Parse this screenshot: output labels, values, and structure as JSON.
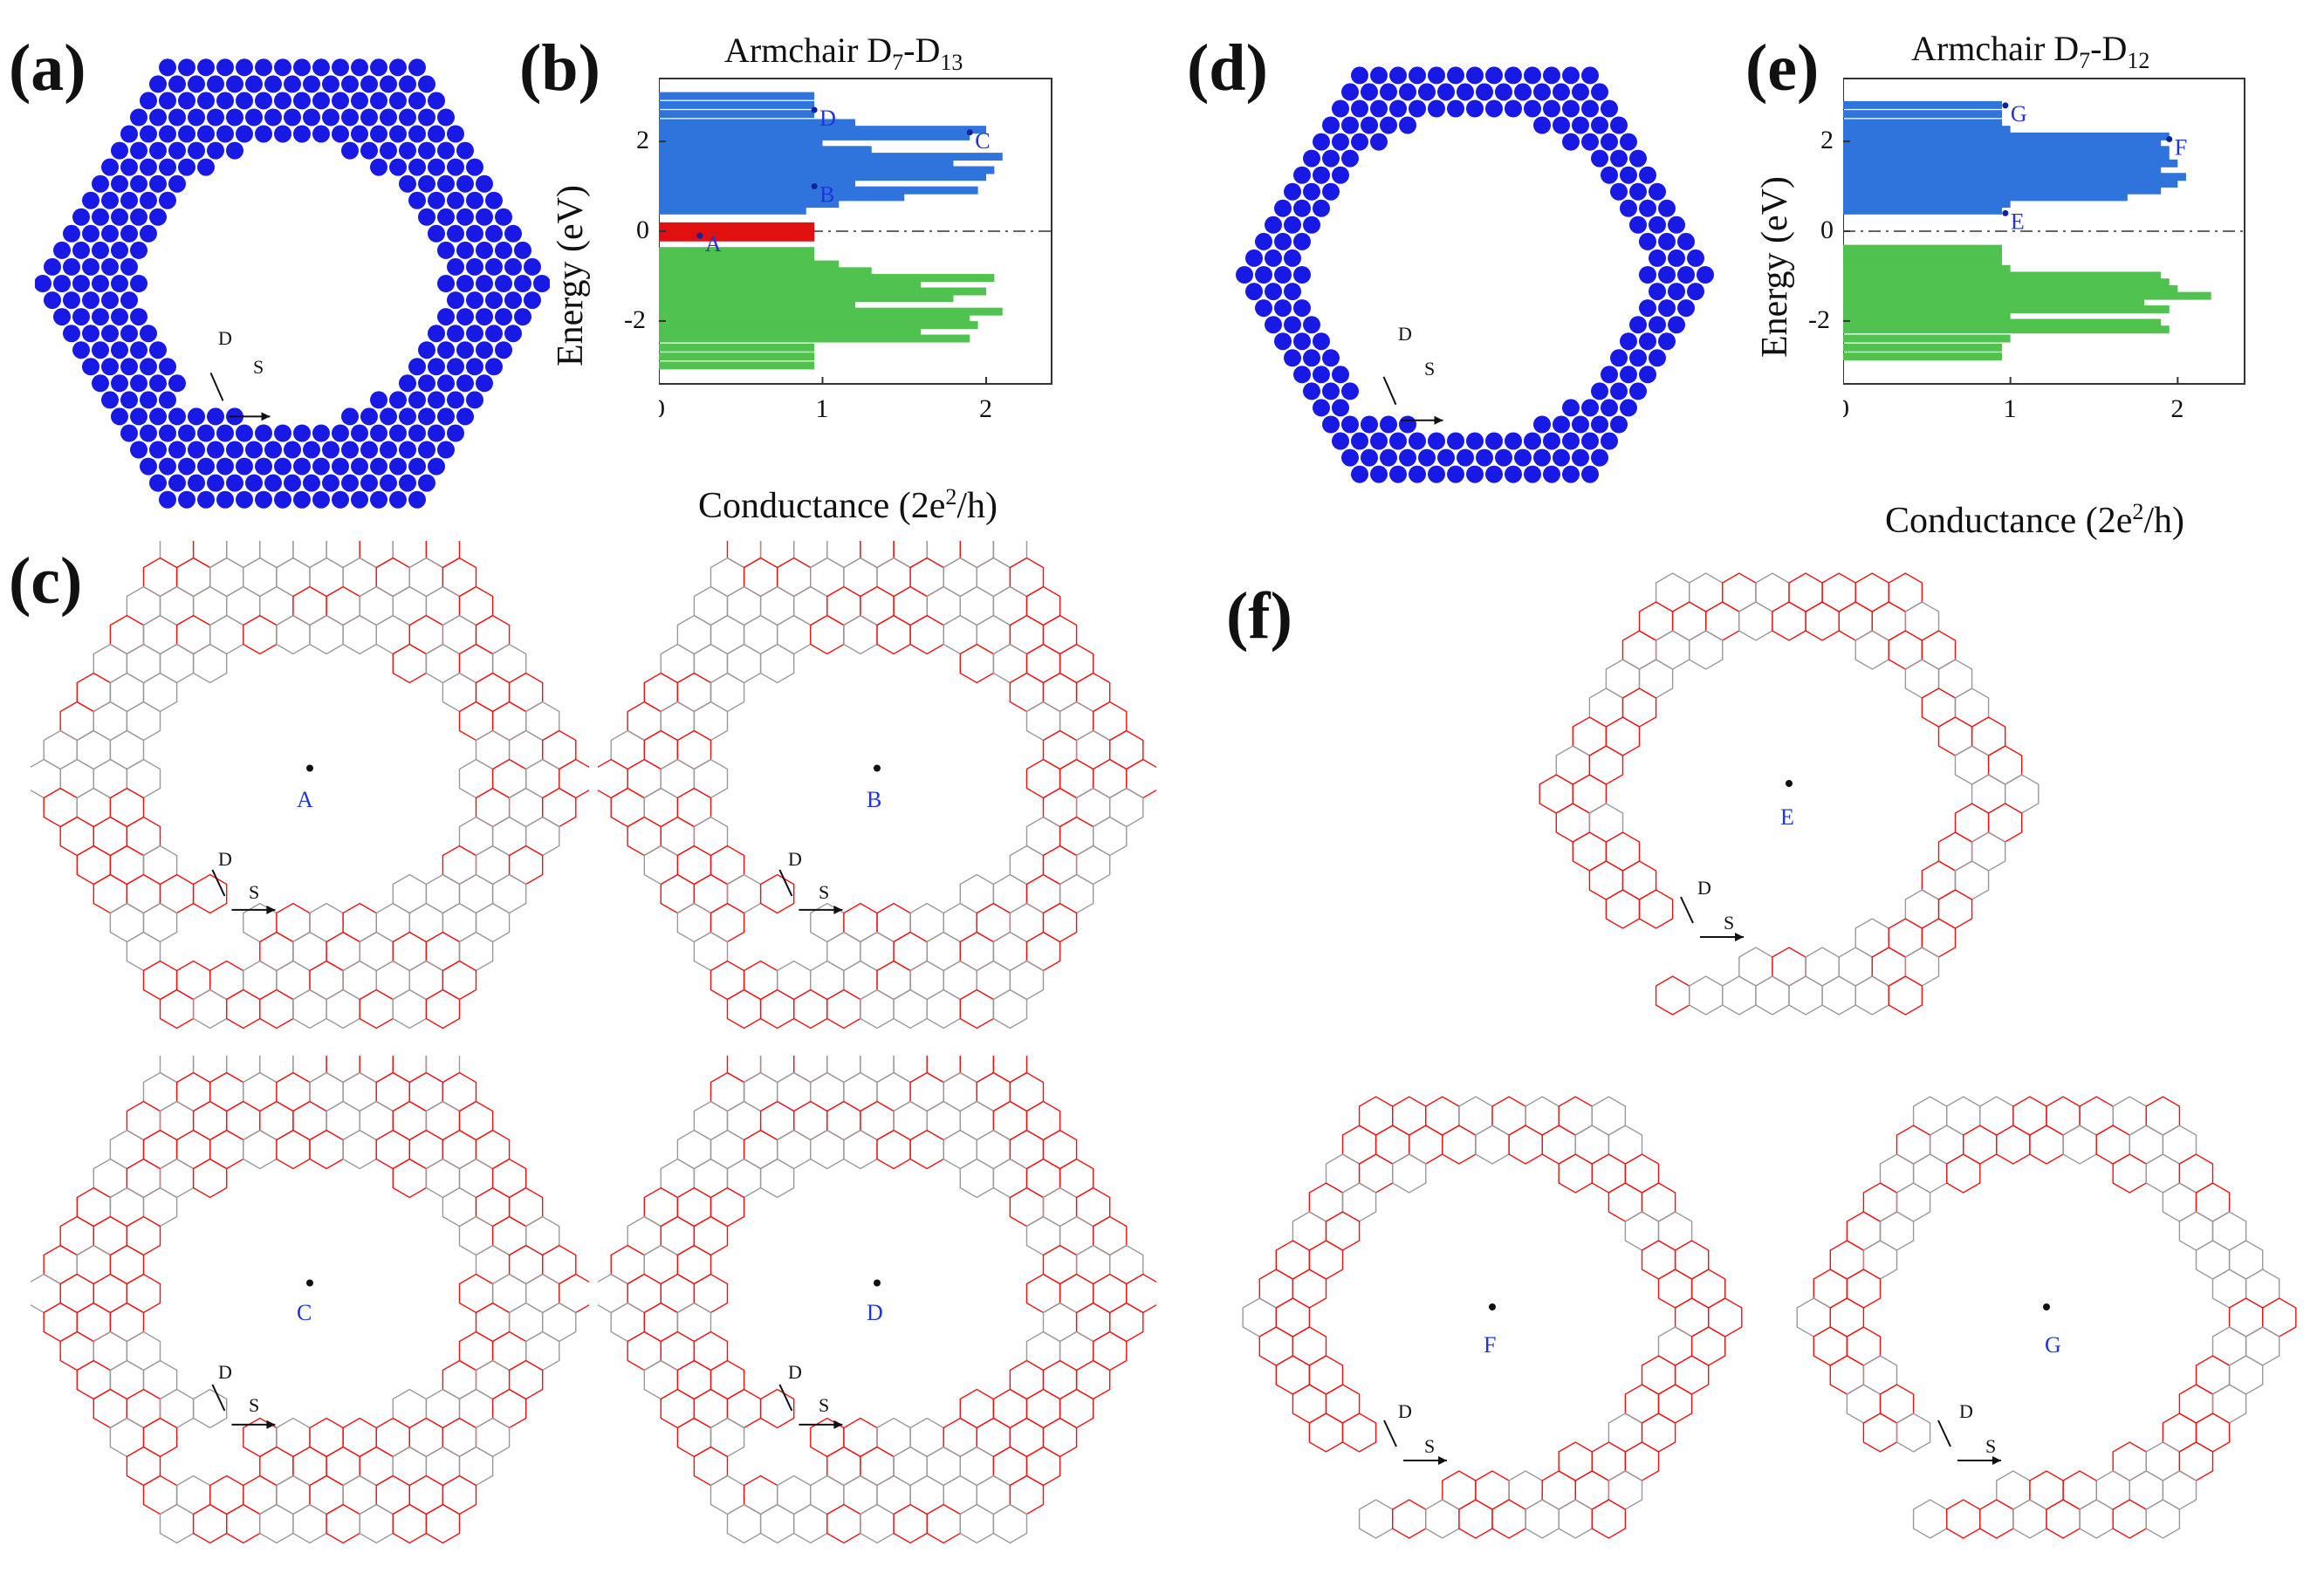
{
  "panels": {
    "a": {
      "letter": "(a)"
    },
    "b": {
      "letter": "(b)"
    },
    "c": {
      "letter": "(c)"
    },
    "d": {
      "letter": "(d)"
    },
    "e": {
      "letter": "(e)"
    },
    "f": {
      "letter": "(f)"
    }
  },
  "colors": {
    "atom": "#1919e6",
    "bond_current": "#ee1111",
    "lattice": "#999999",
    "conduction_band": "#2f73dd",
    "valence_band": "#4fc24f",
    "gap_state": "#e01010",
    "point_label": "#2233dd"
  },
  "chart_data": [
    {
      "type": "bar",
      "orientation": "horizontal",
      "title": "Armchair D",
      "title_sub1": "7",
      "title_mid": "-D",
      "title_sub2": "13",
      "xlabel": "Conductance (2e",
      "xlabel_sup": "2",
      "xlabel_end": "/h)",
      "ylabel": "Energy (eV)",
      "xlim": [
        0,
        2.4
      ],
      "ylim": [
        -3.4,
        3.4
      ],
      "xticks": [
        "0",
        "1",
        "2"
      ],
      "yticks": [
        "2",
        "0",
        "-2"
      ],
      "fermi_line": 0,
      "points": [
        {
          "label": "A",
          "energy": -0.1,
          "conductance": 0.25
        },
        {
          "label": "B",
          "energy": 1.0,
          "conductance": 0.95
        },
        {
          "label": "C",
          "energy": 2.2,
          "conductance": 1.9
        },
        {
          "label": "D",
          "energy": 2.7,
          "conductance": 0.95
        }
      ],
      "series": [
        {
          "name": "gap",
          "energy": [
            0.1,
            0.05,
            -0.05,
            -0.1,
            -0.15
          ],
          "conductance": [
            0.95,
            0.95,
            0.95,
            0.95,
            0.95
          ]
        },
        {
          "name": "conduction",
          "energy": [
            0.45,
            0.6,
            0.75,
            0.9,
            1.05,
            1.2,
            1.35,
            1.5,
            1.65,
            1.8,
            1.95,
            2.1,
            2.25,
            2.4,
            2.6,
            2.8,
            3.0
          ],
          "conductance": [
            0.9,
            1.1,
            1.5,
            1.95,
            1.2,
            2.0,
            2.05,
            1.8,
            2.1,
            1.3,
            1.0,
            1.9,
            2.0,
            1.2,
            0.95,
            0.95,
            0.95
          ]
        },
        {
          "name": "valence",
          "energy": [
            -0.45,
            -0.6,
            -0.75,
            -0.9,
            -1.05,
            -1.2,
            -1.35,
            -1.5,
            -1.65,
            -1.8,
            -1.95,
            -2.1,
            -2.25,
            -2.4,
            -2.6,
            -2.8,
            -3.0
          ],
          "conductance": [
            0.95,
            0.95,
            1.1,
            1.3,
            2.05,
            1.6,
            2.0,
            1.8,
            1.2,
            2.1,
            1.9,
            1.95,
            1.6,
            1.9,
            0.95,
            0.95,
            0.95
          ]
        }
      ]
    },
    {
      "type": "bar",
      "orientation": "horizontal",
      "title": "Armchair D",
      "title_sub1": "7",
      "title_mid": "-D",
      "title_sub2": "12",
      "xlabel": "Conductance (2e",
      "xlabel_sup": "2",
      "xlabel_end": "/h)",
      "ylabel": "Energy (eV)",
      "xlim": [
        0,
        2.4
      ],
      "ylim": [
        -3.4,
        3.4
      ],
      "xticks": [
        "0",
        "1",
        "2"
      ],
      "yticks": [
        "2",
        "0",
        "-2"
      ],
      "fermi_line": 0,
      "points": [
        {
          "label": "E",
          "energy": 0.4,
          "conductance": 0.97
        },
        {
          "label": "F",
          "energy": 2.05,
          "conductance": 1.95
        },
        {
          "label": "G",
          "energy": 2.8,
          "conductance": 0.97
        }
      ],
      "series": [
        {
          "name": "conduction",
          "energy": [
            0.45,
            0.6,
            0.75,
            0.9,
            1.05,
            1.2,
            1.35,
            1.5,
            1.65,
            1.8,
            1.95,
            2.1,
            2.25,
            2.4,
            2.6,
            2.8
          ],
          "conductance": [
            0.95,
            1.0,
            1.7,
            1.9,
            2.0,
            2.05,
            1.9,
            2.0,
            1.95,
            1.95,
            1.9,
            1.95,
            1.0,
            0.95,
            0.95,
            0.95
          ]
        },
        {
          "name": "valence",
          "energy": [
            -0.4,
            -0.55,
            -0.7,
            -0.85,
            -1.0,
            -1.15,
            -1.3,
            -1.45,
            -1.6,
            -1.75,
            -1.9,
            -2.05,
            -2.2,
            -2.4,
            -2.6,
            -2.8
          ],
          "conductance": [
            0.95,
            0.95,
            0.95,
            1.0,
            1.9,
            1.95,
            2.0,
            2.2,
            1.8,
            1.95,
            1.0,
            1.9,
            1.95,
            1.0,
            0.95,
            0.95
          ]
        }
      ]
    }
  ],
  "flakes": {
    "a": {
      "S": "S",
      "D": "D"
    },
    "d": {
      "S": "S",
      "D": "D"
    }
  },
  "current_maps": {
    "A": {
      "label": "A",
      "S": "S",
      "D": "D"
    },
    "B": {
      "label": "B",
      "S": "S",
      "D": "D"
    },
    "C": {
      "label": "C",
      "S": "S",
      "D": "D"
    },
    "D": {
      "label": "D",
      "S": "S",
      "D": "D"
    },
    "E": {
      "label": "E",
      "S": "S",
      "D": "D"
    },
    "F": {
      "label": "F",
      "S": "S",
      "D": "D"
    },
    "G": {
      "label": "G",
      "S": "S",
      "D": "D"
    }
  }
}
